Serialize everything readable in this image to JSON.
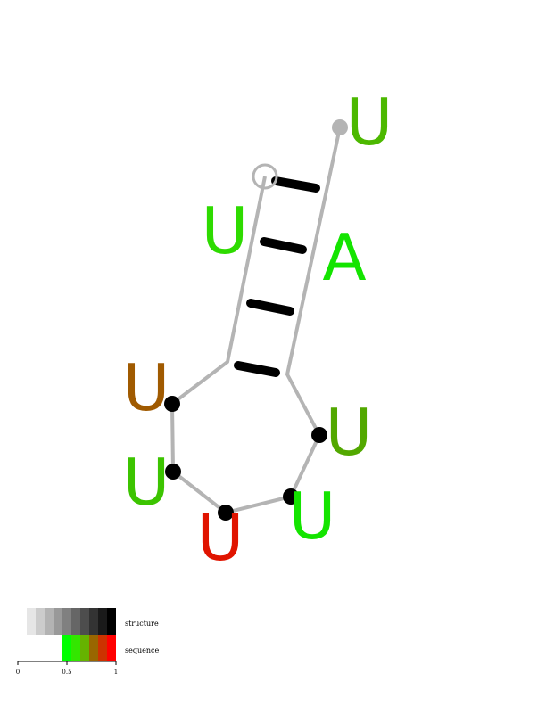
{
  "structure": {
    "sequence": [
      {
        "base": "U",
        "color": "#00e800",
        "marker": "circle-open"
      },
      {
        "base": "U",
        "color": "#2edb00",
        "marker": "none"
      },
      {
        "base": "U",
        "color": "#a05a00",
        "marker": "dot"
      },
      {
        "base": "U",
        "color": "#3cc400",
        "marker": "dot"
      },
      {
        "base": "U",
        "color": "#e01400",
        "marker": "dot"
      },
      {
        "base": "U",
        "color": "#14e400",
        "marker": "dot"
      },
      {
        "base": "U",
        "color": "#52a800",
        "marker": "dot"
      },
      {
        "base": "A",
        "color": "#14e400",
        "marker": "none"
      },
      {
        "base": "U",
        "color": "#4cb800",
        "marker": "dot-grey"
      }
    ],
    "base_pairs": 4,
    "backbone_color": "#b4b4b4",
    "pair_color": "#000000"
  },
  "legend": {
    "structure_label": "structure",
    "sequence_label": "sequence",
    "structure_colors": [
      "#e6e6e6",
      "#cccccc",
      "#b3b3b3",
      "#999999",
      "#808080",
      "#666666",
      "#4d4d4d",
      "#333333",
      "#1a1a1a",
      "#000000"
    ],
    "sequence_colors": [
      "#00ff00",
      "#33e600",
      "#66b300",
      "#996600",
      "#cc3300",
      "#ff0000"
    ],
    "ticks": [
      "0",
      "0.5",
      "1"
    ]
  }
}
